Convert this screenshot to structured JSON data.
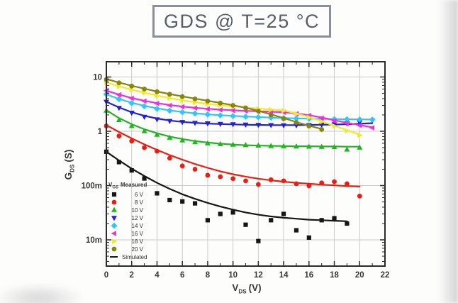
{
  "title": "GDS @ T=25 °C",
  "chart_data": {
    "type": "line",
    "title": "GDS @ T=25 °C",
    "xlabel": {
      "pre": "V",
      "sub": "DS",
      "post": "(V)"
    },
    "ylabel": {
      "pre": "G",
      "sub": "DS",
      "post": "(S)"
    },
    "x_range": [
      0,
      22
    ],
    "y_scale": "log",
    "y_range": [
      0.00328,
      19.1
    ],
    "x_ticks": [
      0,
      2,
      4,
      6,
      8,
      10,
      12,
      14,
      16,
      18,
      20,
      22
    ],
    "y_ticks": [
      {
        "value": 10,
        "label": "10"
      },
      {
        "value": 1,
        "label": "1"
      },
      {
        "value": 0.1,
        "label": "100m"
      },
      {
        "value": 0.01,
        "label": "10m"
      }
    ],
    "grid": true,
    "legend": {
      "header": {
        "pre": "V",
        "sub": "GS",
        "post": "Measured"
      },
      "simulated_label": "Simulated",
      "position": "bottom-left"
    },
    "x_start": 0,
    "x_step": 1,
    "series": [
      {
        "name": "6 V",
        "color": "#161616",
        "marker": "square",
        "measured": [
          0.42,
          0.27,
          0.19,
          0.135,
          0.072,
          0.054,
          0.051,
          0.047,
          0.023,
          0.03,
          0.032,
          0.019,
          0.0095,
          0.023,
          0.03,
          0.015,
          0.011,
          0.023,
          0.025,
          0.02
        ],
        "simulated": [
          0.42,
          0.29,
          0.205,
          0.15,
          0.112,
          0.087,
          0.069,
          0.057,
          0.048,
          0.041,
          0.036,
          0.032,
          0.029,
          0.027,
          0.0255,
          0.0245,
          0.0235,
          0.023,
          0.0225,
          0.022
        ]
      },
      {
        "name": "8 V",
        "color": "#e71f14",
        "marker": "circle",
        "measured": [
          1.25,
          0.82,
          0.66,
          0.5,
          0.43,
          0.32,
          0.23,
          0.2,
          0.155,
          0.145,
          0.134,
          0.122,
          0.105,
          0.128,
          0.122,
          0.108,
          0.099,
          0.112,
          0.118,
          0.108,
          0.064
        ],
        "simulated": [
          1.3,
          0.97,
          0.74,
          0.575,
          0.455,
          0.365,
          0.3,
          0.25,
          0.212,
          0.183,
          0.162,
          0.146,
          0.134,
          0.125,
          0.118,
          0.112,
          0.108,
          0.104,
          0.101,
          0.098,
          0.096
        ]
      },
      {
        "name": "10 V",
        "color": "#24b324",
        "marker": "triangle-up",
        "measured": [
          2.4,
          1.6,
          1.25,
          1.0,
          0.86,
          0.76,
          0.68,
          0.63,
          0.6,
          0.58,
          0.565,
          0.555,
          0.545,
          0.535,
          0.53,
          0.525,
          0.52,
          0.515,
          0.51,
          0.46,
          0.5
        ],
        "simulated": [
          2.45,
          1.75,
          1.35,
          1.09,
          0.92,
          0.8,
          0.72,
          0.66,
          0.62,
          0.59,
          0.57,
          0.555,
          0.545,
          0.54,
          0.535,
          0.53,
          0.53,
          0.525,
          0.525,
          0.52,
          0.52
        ]
      },
      {
        "name": "12 V",
        "color": "#2121d2",
        "marker": "triangle-down",
        "measured": [
          3.5,
          2.7,
          2.2,
          1.85,
          1.66,
          1.55,
          1.48,
          1.43,
          1.4,
          1.37,
          1.35,
          1.33,
          1.31,
          1.3,
          1.29,
          1.29,
          1.3,
          1.32,
          1.35,
          1.4,
          1.47,
          1.57
        ],
        "simulated": [
          3.5,
          2.75,
          2.25,
          1.93,
          1.72,
          1.58,
          1.49,
          1.43,
          1.39,
          1.36,
          1.34,
          1.32,
          1.31,
          1.3,
          1.3,
          1.3,
          1.31,
          1.32,
          1.33,
          1.35,
          1.38,
          1.41
        ]
      },
      {
        "name": "14 V",
        "color": "#30c8f2",
        "marker": "diamond",
        "measured": [
          4.8,
          3.9,
          3.3,
          2.9,
          2.6,
          2.4,
          2.25,
          2.13,
          2.04,
          1.97,
          1.91,
          1.86,
          1.82,
          1.78,
          1.75,
          1.72,
          1.7,
          1.68,
          1.67,
          1.66,
          1.65,
          1.64
        ],
        "simulated": [
          4.8,
          3.95,
          3.35,
          2.95,
          2.65,
          2.43,
          2.27,
          2.15,
          2.05,
          1.98,
          1.92,
          1.87,
          1.83,
          1.79,
          1.76,
          1.73,
          1.71,
          1.69,
          1.68,
          1.67,
          1.66,
          1.65
        ]
      },
      {
        "name": "16 V",
        "color": "#e833da",
        "marker": "triangle-left",
        "measured": [
          5.6,
          4.7,
          4.05,
          3.6,
          3.25,
          3.0,
          2.82,
          2.68,
          2.57,
          2.48,
          2.42,
          2.36,
          2.32,
          2.28,
          2.24,
          2.1,
          1.95,
          1.75,
          1.55,
          1.4,
          1.28,
          1.16
        ],
        "simulated": [
          5.6,
          4.75,
          4.1,
          3.65,
          3.3,
          3.05,
          2.86,
          2.71,
          2.6,
          2.51,
          2.44,
          2.38,
          2.33,
          2.29,
          2.25,
          2.13,
          1.98,
          1.8,
          1.6,
          1.44,
          1.3,
          1.18
        ]
      },
      {
        "name": "18 V",
        "color": "#efeb2b",
        "marker": "triangle-right",
        "measured": [
          7.9,
          6.7,
          5.8,
          5.1,
          4.5,
          4.05,
          3.7,
          3.4,
          3.18,
          3.0,
          2.85,
          2.72,
          2.6,
          2.5,
          2.4,
          2.1,
          1.8,
          1.5,
          1.25,
          1.02,
          0.85
        ],
        "simulated": [
          7.9,
          6.75,
          5.85,
          5.15,
          4.55,
          4.1,
          3.72,
          3.44,
          3.2,
          3.02,
          2.87,
          2.74,
          2.62,
          2.52,
          2.42,
          2.13,
          1.83,
          1.53,
          1.27,
          1.05,
          0.87
        ]
      },
      {
        "name": "20 V",
        "color": "#85850f",
        "marker": "circle",
        "measured": [
          9.0,
          7.8,
          6.8,
          6.0,
          5.35,
          4.8,
          4.35,
          3.95,
          3.6,
          3.3,
          3.0,
          2.7,
          2.35,
          2.0,
          1.7,
          1.45,
          1.25,
          1.08
        ],
        "simulated": [
          9.2,
          7.9,
          6.9,
          6.1,
          5.4,
          4.85,
          4.4,
          4.0,
          3.65,
          3.32,
          3.02,
          2.72,
          2.38,
          2.05,
          1.75,
          1.48,
          1.27,
          1.1
        ]
      }
    ]
  }
}
